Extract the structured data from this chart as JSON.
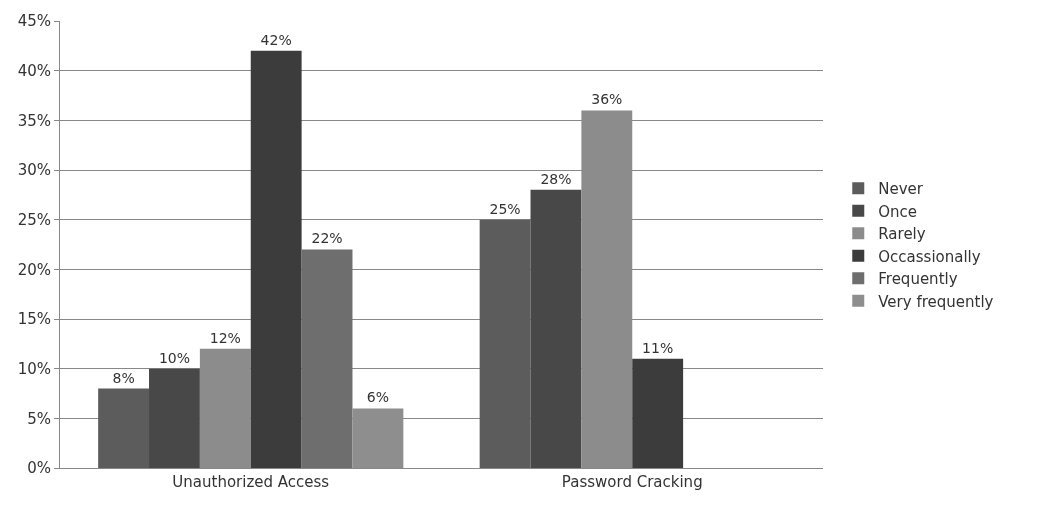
{
  "chart_data": {
    "type": "bar",
    "categories": [
      "Unauthorized Access",
      "Password Cracking"
    ],
    "series": [
      {
        "name": "Never",
        "color": "#5c5c5c",
        "values": [
          8,
          25
        ],
        "value_labels": [
          "8%",
          "25%"
        ]
      },
      {
        "name": "Once",
        "color": "#484848",
        "values": [
          10,
          28
        ],
        "value_labels": [
          "10%",
          "28%"
        ]
      },
      {
        "name": "Rarely",
        "color": "#8c8c8c",
        "values": [
          12,
          36
        ],
        "value_labels": [
          "12%",
          "36%"
        ]
      },
      {
        "name": "Occassionally",
        "color": "#3c3c3c",
        "values": [
          42,
          11
        ],
        "value_labels": [
          "42%",
          "11%"
        ]
      },
      {
        "name": "Frequently",
        "color": "#6e6e6e",
        "values": [
          22,
          null
        ],
        "value_labels": [
          "22%",
          null
        ]
      },
      {
        "name": "Very frequently",
        "color": "#8e8e8e",
        "values": [
          6,
          null
        ],
        "value_labels": [
          "6%",
          null
        ]
      }
    ],
    "ylim": [
      0,
      45
    ],
    "yticks": [
      {
        "value": 0,
        "label": "0%"
      },
      {
        "value": 5,
        "label": "5%"
      },
      {
        "value": 10,
        "label": "10%"
      },
      {
        "value": 15,
        "label": "15%"
      },
      {
        "value": 20,
        "label": "20%"
      },
      {
        "value": 25,
        "label": "25%"
      },
      {
        "value": 30,
        "label": "30%"
      },
      {
        "value": 35,
        "label": "35%"
      },
      {
        "value": 40,
        "label": "40%"
      },
      {
        "value": 45,
        "label": "45%"
      }
    ],
    "grid": "y",
    "legend": "right"
  }
}
